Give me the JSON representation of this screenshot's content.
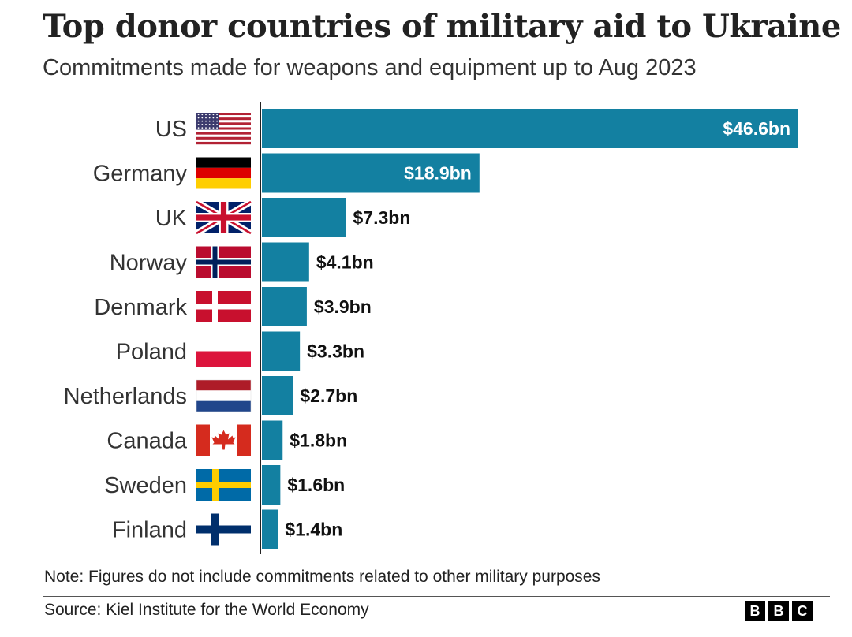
{
  "title": "Top donor countries of military aid to Ukraine",
  "subtitle": "Commitments made for weapons and equipment up to Aug 2023",
  "note": "Note: Figures do not include commitments related to other military purposes",
  "source": "Source: Kiel Institute for the World Economy",
  "logo": [
    "B",
    "B",
    "C"
  ],
  "colors": {
    "bar": "#1380A1",
    "label_inside": "#ffffff",
    "label_outside": "#111111",
    "axis": "#222222"
  },
  "chart_data": {
    "type": "bar",
    "orientation": "horizontal",
    "title": "Top donor countries of military aid to Ukraine",
    "subtitle": "Commitments made for weapons and equipment up to Aug 2023",
    "xlabel": "",
    "ylabel": "",
    "unit": "$bn",
    "xlim": [
      0,
      46.6
    ],
    "grid": false,
    "categories": [
      "US",
      "Germany",
      "UK",
      "Norway",
      "Denmark",
      "Poland",
      "Netherlands",
      "Canada",
      "Sweden",
      "Finland"
    ],
    "values": [
      46.6,
      18.9,
      7.3,
      4.1,
      3.9,
      3.3,
      2.7,
      1.8,
      1.6,
      1.4
    ],
    "value_labels": [
      "$46.6bn",
      "$18.9bn",
      "$7.3bn",
      "$4.1bn",
      "$3.9bn",
      "$3.3bn",
      "$2.7bn",
      "$1.8bn",
      "$1.6bn",
      "$1.4bn"
    ],
    "flags": [
      "us-flag-icon",
      "germany-flag-icon",
      "uk-flag-icon",
      "norway-flag-icon",
      "denmark-flag-icon",
      "poland-flag-icon",
      "netherlands-flag-icon",
      "canada-flag-icon",
      "sweden-flag-icon",
      "finland-flag-icon"
    ]
  }
}
